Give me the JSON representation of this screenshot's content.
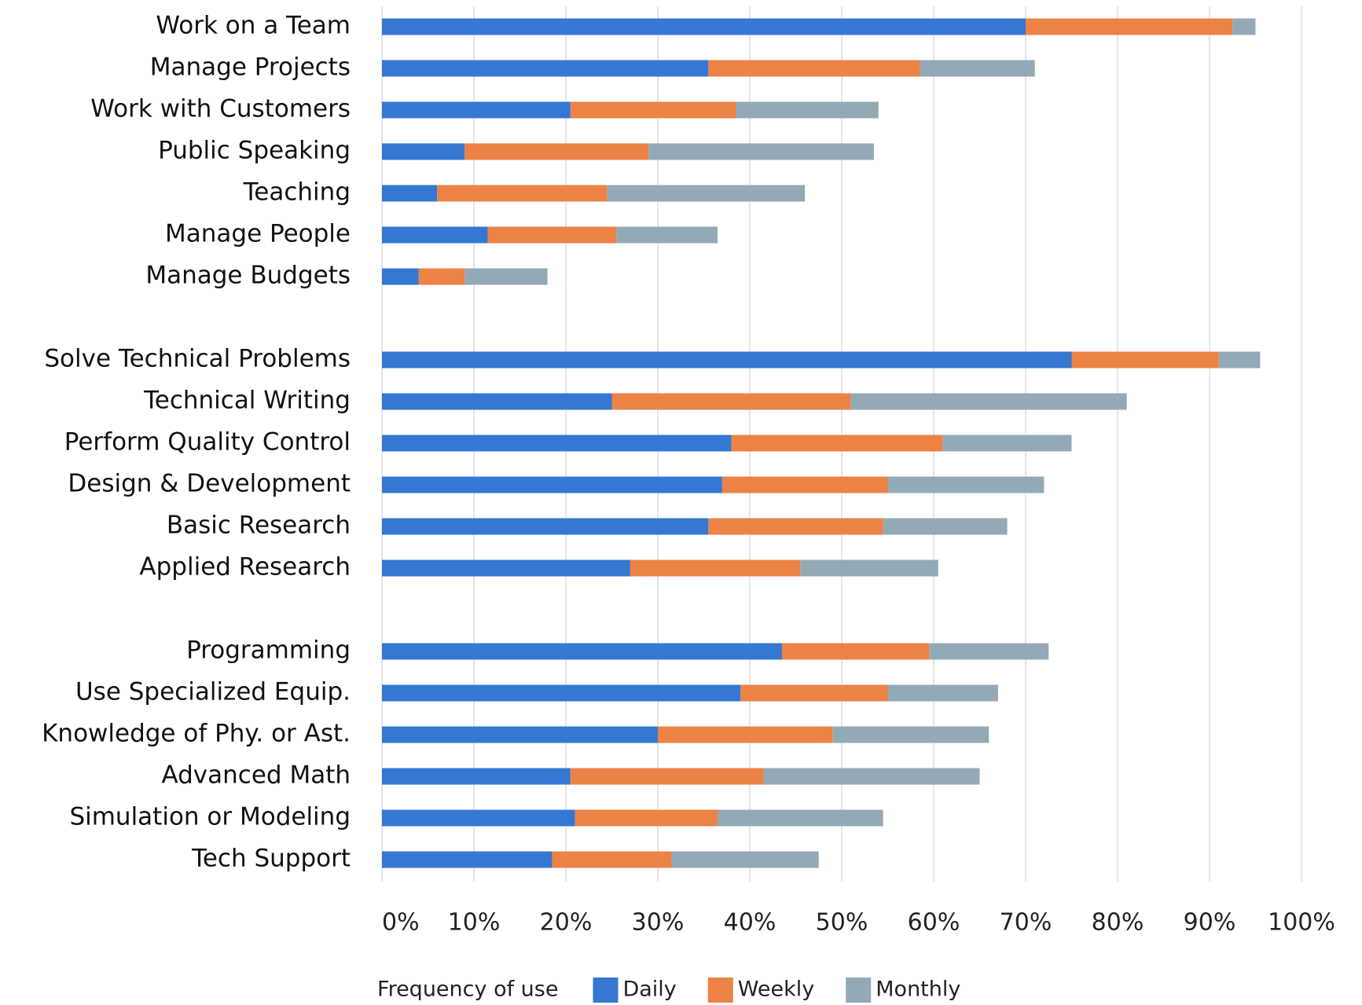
{
  "chart_data": {
    "type": "stacked-bar-horizontal",
    "categories": [
      "Work on a Team",
      "Manage Projects",
      "Work with Customers",
      "Public Speaking",
      "Teaching",
      "Manage People",
      "Manage Budgets",
      null,
      "Solve Technical Problems",
      "Technical Writing",
      "Perform Quality Control",
      "Design & Development",
      "Basic Research",
      "Applied Research",
      null,
      "Programming",
      "Use Specialized Equip.",
      "Knowledge of Phy. or Ast.",
      "Advanced Math",
      "Simulation or Modeling",
      "Tech Support"
    ],
    "series": [
      {
        "name": "Daily",
        "color": "#3478d4",
        "values": [
          70,
          35.5,
          20.5,
          9,
          6,
          11.5,
          4,
          null,
          75,
          25,
          38,
          37,
          35.5,
          27,
          null,
          43.5,
          39,
          30,
          20.5,
          21,
          18.5
        ]
      },
      {
        "name": "Weekly",
        "color": "#ed8245",
        "values": [
          22.5,
          23,
          18,
          20,
          18.5,
          14,
          5,
          null,
          16,
          26,
          23,
          18,
          19,
          18.5,
          null,
          16,
          16,
          19,
          21,
          15.5,
          13
        ]
      },
      {
        "name": "Monthly",
        "color": "#94a9b6",
        "values": [
          2.5,
          12.5,
          15.5,
          24.5,
          21.5,
          11,
          9,
          null,
          4.5,
          30,
          14,
          17,
          13.5,
          15,
          null,
          13,
          12,
          17,
          23.5,
          18,
          16
        ]
      }
    ],
    "legend_title": "Frequency of use",
    "xlim": [
      0,
      100
    ],
    "xticks": [
      {
        "value": 0,
        "label": "0%"
      },
      {
        "value": 10,
        "label": "10%"
      },
      {
        "value": 20,
        "label": "20%"
      },
      {
        "value": 30,
        "label": "30%"
      },
      {
        "value": 40,
        "label": "40%"
      },
      {
        "value": 50,
        "label": "50%"
      },
      {
        "value": 60,
        "label": "60%"
      },
      {
        "value": 70,
        "label": "70%"
      },
      {
        "value": 80,
        "label": "80%"
      },
      {
        "value": 90,
        "label": "90%"
      },
      {
        "value": 100,
        "label": "100%"
      }
    ],
    "grid": true,
    "legend": "bottom"
  }
}
